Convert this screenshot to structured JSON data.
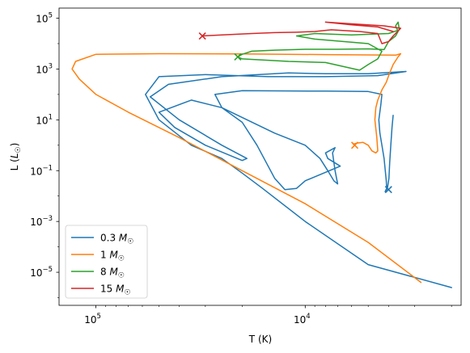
{
  "chart_data": {
    "type": "line",
    "title": "",
    "xlabel": "T (K)",
    "ylabel": "L (",
    "ylabel_unit": "L",
    "ylabel_sub": "☉",
    "ylabel_close": ")",
    "x_scale": "log",
    "y_scale": "log",
    "x_reversed": true,
    "xlim": [
      150000,
      1800
    ],
    "ylim": [
      5e-07,
      250000
    ],
    "x_ticks": [
      {
        "value": 100000,
        "base": "10",
        "exp": "5"
      },
      {
        "value": 10000,
        "base": "10",
        "exp": "4"
      }
    ],
    "y_ticks": [
      {
        "value": 1e-05,
        "base": "10",
        "exp": "−5"
      },
      {
        "value": 0.001,
        "base": "10",
        "exp": "−3"
      },
      {
        "value": 0.1,
        "base": "10",
        "exp": "−1"
      },
      {
        "value": 10,
        "base": "10",
        "exp": "1"
      },
      {
        "value": 1000,
        "base": "10",
        "exp": "3"
      },
      {
        "value": 100000,
        "base": "10",
        "exp": "5"
      }
    ],
    "grid": false,
    "legend_position": "lower-left",
    "series": [
      {
        "name": "0.3",
        "unit": "M",
        "unit_sub": "☉",
        "color": "#1f77b4",
        "points": [
          [
            3800,
            15
          ],
          [
            3850,
            5
          ],
          [
            3900,
            1
          ],
          [
            3950,
            0.2
          ],
          [
            3980,
            0.05
          ],
          [
            4050,
            0.02
          ],
          [
            4150,
            0.015
          ],
          [
            4080,
            0.02
          ],
          [
            4100,
            0.04
          ],
          [
            4200,
            0.3
          ],
          [
            4300,
            1
          ],
          [
            4400,
            3
          ],
          [
            4450,
            10
          ],
          [
            4350,
            40
          ],
          [
            4300,
            100
          ],
          [
            5000,
            130
          ],
          [
            8000,
            135
          ],
          [
            20000,
            140
          ],
          [
            27000,
            100
          ],
          [
            25000,
            30
          ],
          [
            14000,
            3
          ],
          [
            10000,
            1
          ],
          [
            8500,
            0.3
          ],
          [
            7800,
            0.1
          ],
          [
            7300,
            0.04
          ],
          [
            7000,
            0.03
          ],
          [
            7200,
            0.1
          ],
          [
            7400,
            0.5
          ],
          [
            7200,
            0.8
          ],
          [
            8000,
            0.5
          ],
          [
            7800,
            0.3
          ],
          [
            6800,
            0.15
          ],
          [
            10000,
            0.04
          ],
          [
            11000,
            0.02
          ],
          [
            12500,
            0.018
          ],
          [
            14000,
            0.05
          ],
          [
            17000,
            1
          ],
          [
            20000,
            8
          ],
          [
            25000,
            30
          ],
          [
            35000,
            60
          ],
          [
            50000,
            20
          ],
          [
            42000,
            5
          ],
          [
            30000,
            1
          ],
          [
            20000,
            0.25
          ],
          [
            19000,
            0.3
          ],
          [
            25000,
            1
          ],
          [
            40000,
            10
          ],
          [
            55000,
            80
          ],
          [
            45000,
            250
          ],
          [
            25000,
            500
          ],
          [
            12000,
            700
          ],
          [
            8000,
            650
          ],
          [
            5000,
            650
          ],
          [
            3300,
            800
          ],
          [
            4500,
            550
          ],
          [
            8000,
            500
          ],
          [
            15000,
            500
          ],
          [
            30000,
            600
          ],
          [
            50000,
            500
          ],
          [
            58000,
            100
          ],
          [
            50000,
            10
          ],
          [
            35000,
            1
          ],
          [
            25000,
            0.3
          ],
          [
            20000,
            0.08
          ],
          [
            16000,
            0.02
          ],
          [
            10000,
            0.001
          ],
          [
            5000,
            2e-05
          ],
          [
            2000,
            2.5e-06
          ]
        ]
      },
      {
        "name": "1",
        "unit": "M",
        "unit_sub": "☉",
        "color": "#ff7f0e",
        "points": [
          [
            5800,
            1
          ],
          [
            5900,
            1.1
          ],
          [
            5700,
            1.2
          ],
          [
            5300,
            1.3
          ],
          [
            5000,
            1
          ],
          [
            4800,
            0.6
          ],
          [
            4600,
            0.5
          ],
          [
            4500,
            0.6
          ],
          [
            4550,
            2
          ],
          [
            4650,
            10
          ],
          [
            4600,
            30
          ],
          [
            4500,
            60
          ],
          [
            4300,
            150
          ],
          [
            4100,
            300
          ],
          [
            3950,
            700
          ],
          [
            3800,
            1500
          ],
          [
            3600,
            3000
          ],
          [
            3500,
            4000
          ],
          [
            3700,
            3500
          ],
          [
            8000,
            3700
          ],
          [
            20000,
            3900
          ],
          [
            50000,
            4000
          ],
          [
            100000,
            3800
          ],
          [
            125000,
            2000
          ],
          [
            130000,
            1000
          ],
          [
            120000,
            400
          ],
          [
            100000,
            100
          ],
          [
            70000,
            20
          ],
          [
            40000,
            2
          ],
          [
            20000,
            0.1
          ],
          [
            10000,
            0.005
          ],
          [
            5000,
            0.00015
          ],
          [
            2800,
            4e-06
          ]
        ]
      },
      {
        "name": "8",
        "unit": "M",
        "unit_sub": "☉",
        "color": "#2ca02c",
        "points": [
          [
            21000,
            3000
          ],
          [
            20000,
            3800
          ],
          [
            18000,
            5000
          ],
          [
            14000,
            5500
          ],
          [
            10000,
            6000
          ],
          [
            7000,
            6000
          ],
          [
            5000,
            6200
          ],
          [
            4200,
            5800
          ],
          [
            4000,
            12000
          ],
          [
            3700,
            20000
          ],
          [
            3600,
            30000
          ],
          [
            3700,
            50000
          ],
          [
            3600,
            70000
          ],
          [
            3550,
            35000
          ],
          [
            4000,
            25000
          ],
          [
            6000,
            22000
          ],
          [
            9000,
            25000
          ],
          [
            11000,
            20000
          ],
          [
            9000,
            15000
          ],
          [
            6500,
            12000
          ],
          [
            5000,
            10000
          ],
          [
            4300,
            5000
          ],
          [
            4500,
            2500
          ],
          [
            5000,
            1500
          ],
          [
            5500,
            900
          ],
          [
            8000,
            1800
          ],
          [
            12000,
            2000
          ],
          [
            20000,
            2500
          ],
          [
            21000,
            3000
          ]
        ]
      },
      {
        "name": "15",
        "unit": "M",
        "unit_sub": "☉",
        "color": "#d62728",
        "points": [
          [
            31000,
            20000
          ],
          [
            25000,
            22000
          ],
          [
            18000,
            25000
          ],
          [
            14000,
            27000
          ],
          [
            11000,
            28000
          ],
          [
            9000,
            30000
          ],
          [
            7500,
            35000
          ],
          [
            5500,
            30000
          ],
          [
            4500,
            25000
          ],
          [
            4300,
            10000
          ],
          [
            4000,
            12000
          ],
          [
            3800,
            20000
          ],
          [
            3500,
            40000
          ],
          [
            4200,
            50000
          ],
          [
            6000,
            60000
          ],
          [
            8000,
            70000
          ],
          [
            6000,
            55000
          ],
          [
            4500,
            45000
          ],
          [
            3800,
            30000
          ]
        ]
      }
    ],
    "markers": [
      {
        "series": "0.3",
        "x": 4000,
        "y": 0.018,
        "symbol": "x"
      },
      {
        "series": "1",
        "x": 5800,
        "y": 1,
        "symbol": "x"
      },
      {
        "series": "8",
        "x": 21000,
        "y": 3000,
        "symbol": "x"
      },
      {
        "series": "15",
        "x": 31000,
        "y": 20000,
        "symbol": "x"
      }
    ]
  }
}
